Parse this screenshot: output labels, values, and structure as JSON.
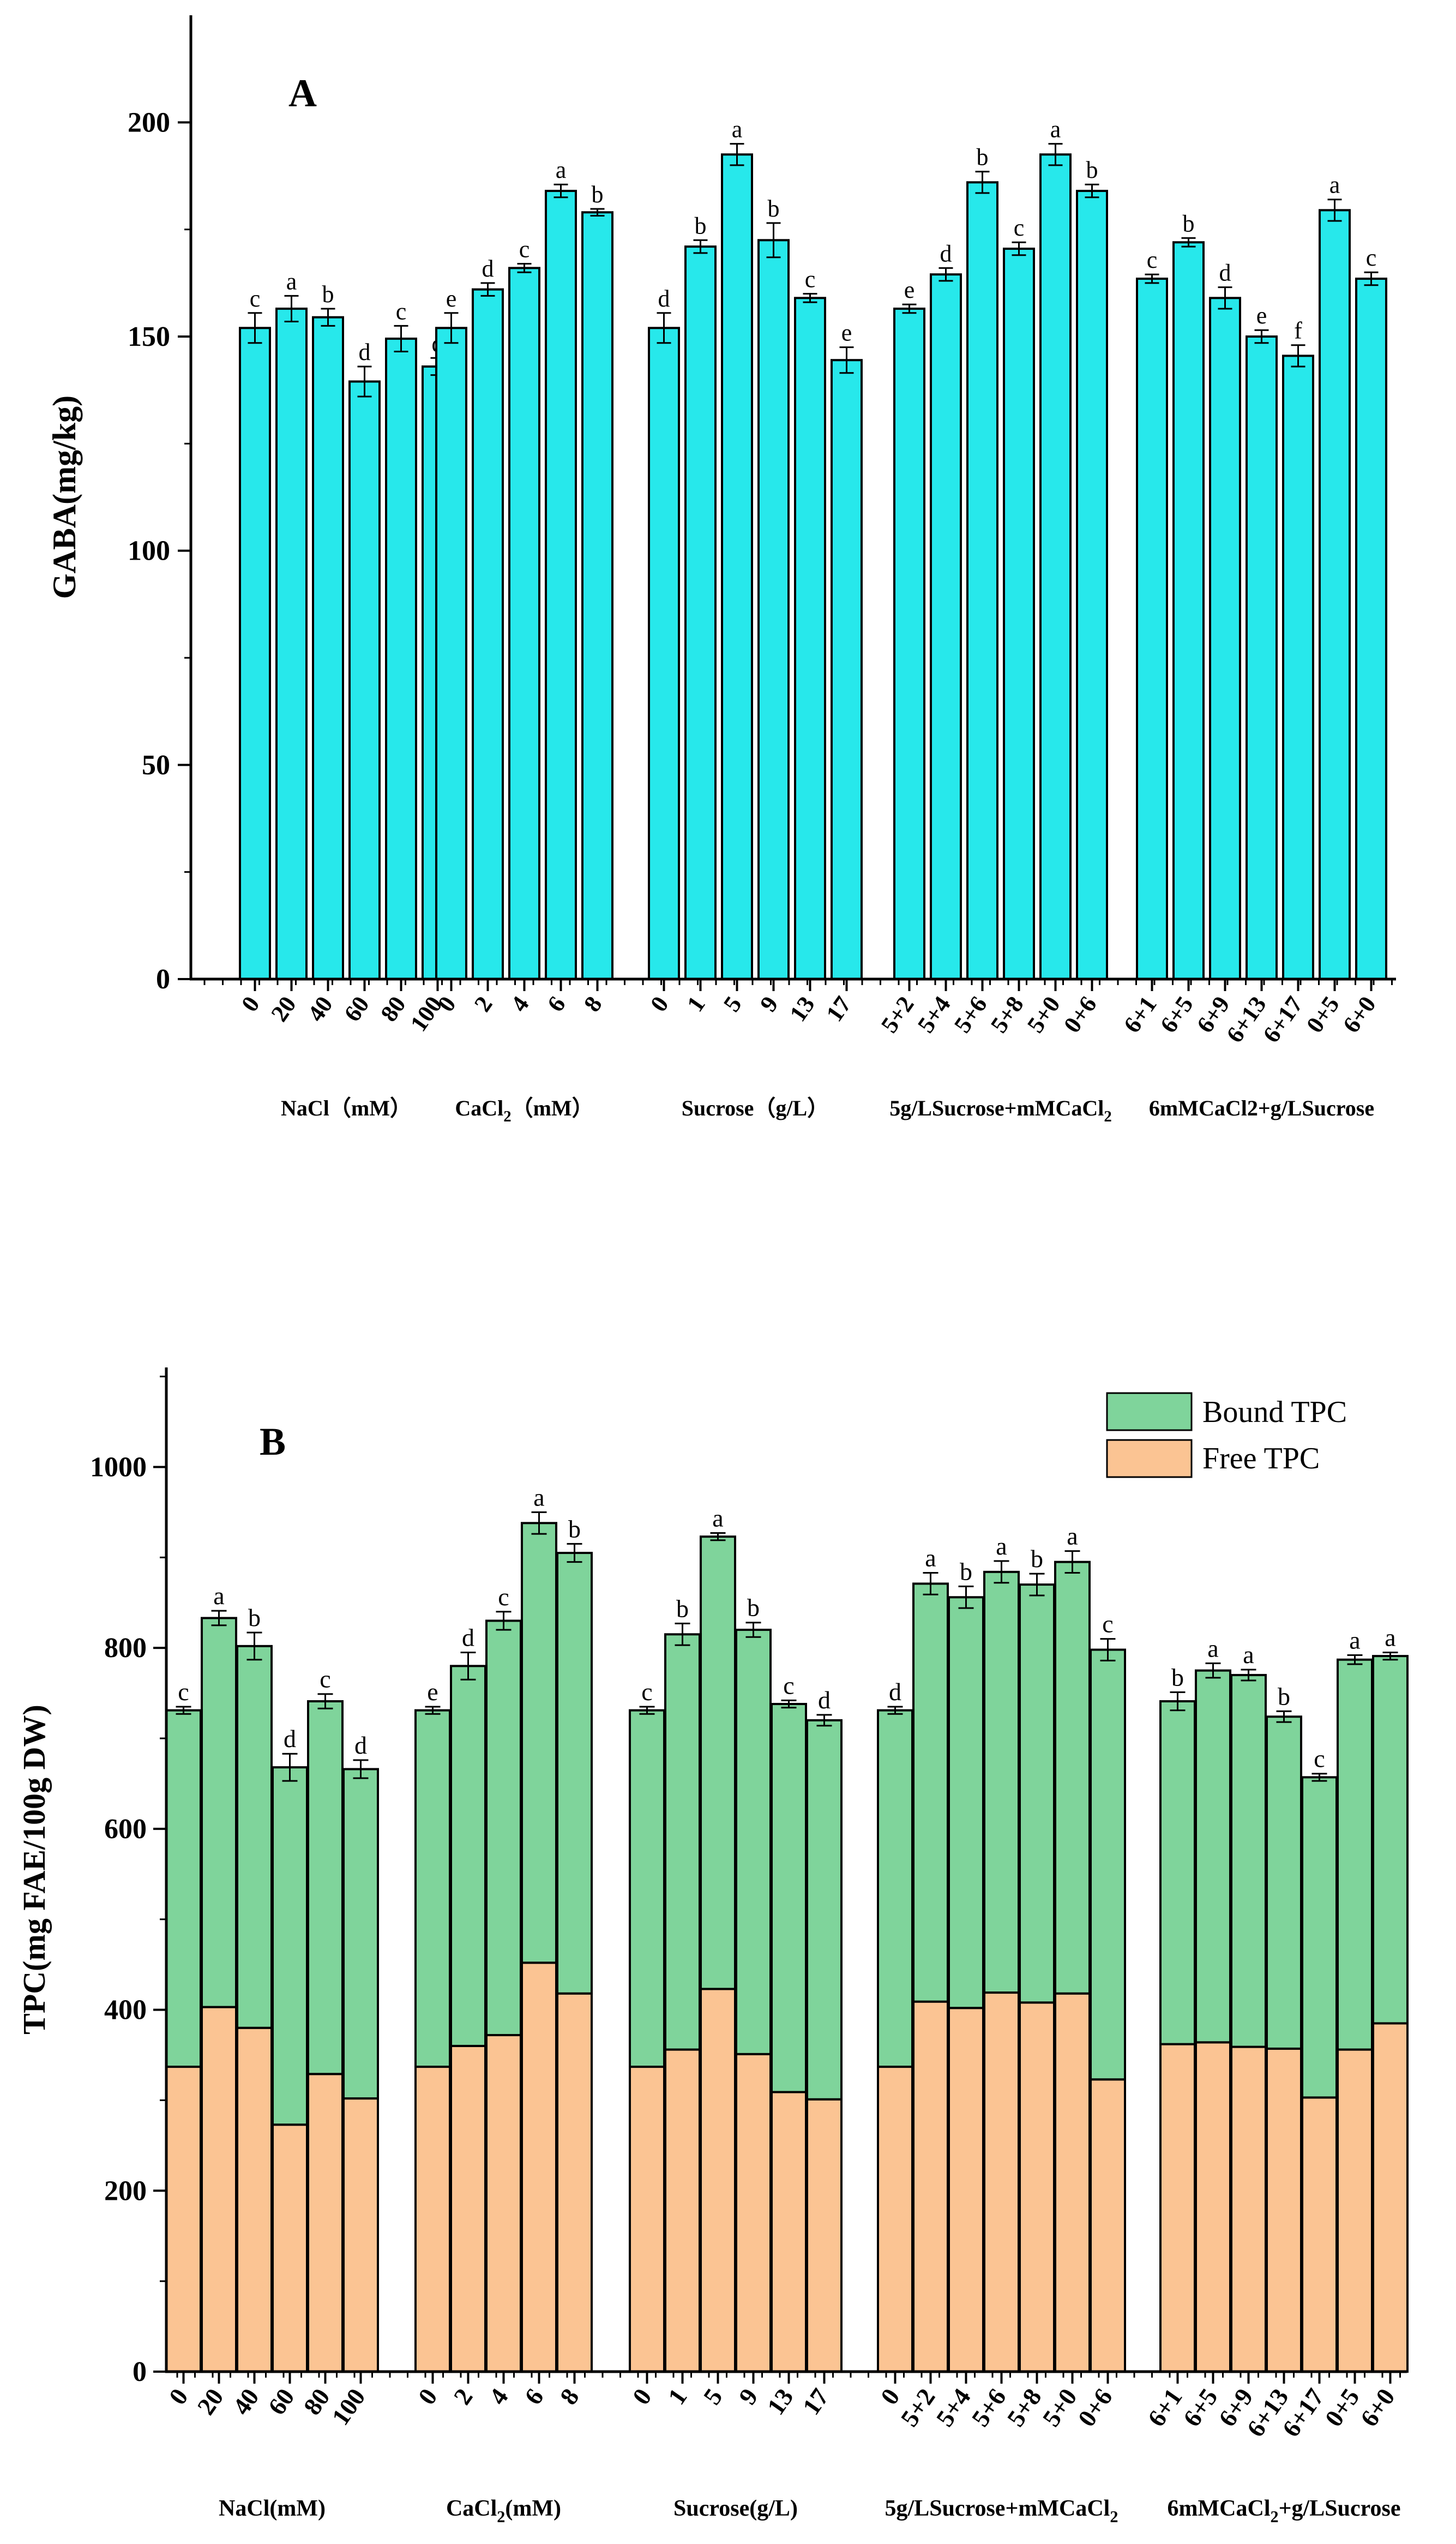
{
  "chart_data": [
    {
      "type": "bar",
      "panel_label": "A",
      "ylabel": "GABA(mg/kg)",
      "ylim": [
        0,
        225
      ],
      "yticks": [
        0,
        50,
        100,
        150,
        200
      ],
      "groups": [
        {
          "name": "NaCl（mM）",
          "categories": [
            "0",
            "20",
            "40",
            "60",
            "80",
            "100"
          ],
          "values": [
            152,
            156.5,
            154.5,
            139.5,
            149.5,
            143
          ],
          "errors": [
            3.5,
            3,
            2,
            3.5,
            3,
            2
          ],
          "letters": [
            "c",
            "a",
            "b",
            "d",
            "c",
            "d"
          ]
        },
        {
          "name": "CaCl2（mM）",
          "name_main": "CaCl",
          "name_sub": "2",
          "name_tail": "（mM）",
          "categories": [
            "0",
            "2",
            "4",
            "6",
            "8"
          ],
          "values": [
            152,
            161,
            166,
            184,
            179
          ],
          "errors": [
            3.5,
            1.5,
            1,
            1.5,
            0.8
          ],
          "letters": [
            "e",
            "d",
            "c",
            "a",
            "b"
          ]
        },
        {
          "name": "Sucrose（g/L）",
          "categories": [
            "0",
            "1",
            "5",
            "9",
            "13",
            "17"
          ],
          "values": [
            152,
            171,
            192.5,
            172.5,
            159,
            144.5
          ],
          "errors": [
            3.5,
            1.5,
            2.5,
            4,
            1,
            3
          ],
          "letters": [
            "d",
            "b",
            "a",
            "b",
            "c",
            "e"
          ]
        },
        {
          "name": "5g/LSucrose+mMCaCl2",
          "name_main": "5g/LSucrose+mMCaCl",
          "name_sub": "2",
          "name_tail": "",
          "categories": [
            "5+2",
            "5+4",
            "5+6",
            "5+8",
            "5+0",
            "0+6"
          ],
          "values": [
            156.5,
            164.5,
            186,
            170.5,
            192.5,
            184
          ],
          "errors": [
            1,
            1.5,
            2.5,
            1.5,
            2.5,
            1.5
          ],
          "letters": [
            "e",
            "d",
            "b",
            "c",
            "a",
            "b"
          ]
        },
        {
          "name": "6mMCaCl2+g/LSucrose",
          "categories": [
            "6+1",
            "6+5",
            "6+9",
            "6+13",
            "6+17",
            "0+5",
            "6+0"
          ],
          "values": [
            163.5,
            172,
            159,
            150,
            145.5,
            179.5,
            163.5
          ],
          "errors": [
            1,
            1,
            2.5,
            1.5,
            2.5,
            2.5,
            1.5
          ],
          "letters": [
            "c",
            "b",
            "d",
            "e",
            "f",
            "a",
            "c"
          ]
        }
      ]
    },
    {
      "type": "stacked-bar",
      "panel_label": "B",
      "ylabel": "TPC(mg FAE/100g DW)",
      "ylim": [
        0,
        1110
      ],
      "yticks": [
        0,
        200,
        400,
        600,
        800,
        1000
      ],
      "legend": [
        "Bound TPC",
        "Free TPC"
      ],
      "legend_position": "top-right",
      "colors": {
        "bound": "#7fd49b",
        "free": "#fbc493"
      },
      "groups": [
        {
          "name": "NaCl(mM)",
          "categories": [
            "0",
            "20",
            "40",
            "60",
            "80",
            "100"
          ],
          "free": [
            337,
            403,
            380,
            273,
            329,
            302
          ],
          "total": [
            731,
            833,
            802,
            668,
            741,
            666
          ],
          "errors": [
            4,
            8,
            15,
            15,
            8,
            10
          ],
          "letters": [
            "c",
            "a",
            "b",
            "d",
            "c",
            "d"
          ]
        },
        {
          "name": "CaCl2(mM)",
          "name_main": "CaCl",
          "name_sub": "2",
          "name_tail": "(mM)",
          "categories": [
            "0",
            "2",
            "4",
            "6",
            "8"
          ],
          "free": [
            337,
            360,
            372,
            452,
            418
          ],
          "total": [
            731,
            780,
            830,
            938,
            905
          ],
          "errors": [
            4,
            15,
            10,
            12,
            10
          ],
          "letters": [
            "e",
            "d",
            "c",
            "a",
            "b"
          ]
        },
        {
          "name": "Sucrose(g/L)",
          "categories": [
            "0",
            "1",
            "5",
            "9",
            "13",
            "17"
          ],
          "free": [
            337,
            356,
            423,
            351,
            309,
            301
          ],
          "total": [
            731,
            815,
            923,
            820,
            738,
            720
          ],
          "errors": [
            4,
            12,
            4,
            8,
            4,
            6
          ],
          "letters": [
            "c",
            "b",
            "a",
            "b",
            "c",
            "d"
          ]
        },
        {
          "name": "5g/LSucrose+mMCaCl2",
          "name_main": "5g/LSucrose+mMCaCl",
          "name_sub": "2",
          "name_tail": "",
          "categories": [
            "0",
            "5+2",
            "5+4",
            "5+6",
            "5+8",
            "5+0",
            "0+6"
          ],
          "free": [
            337,
            409,
            402,
            419,
            408,
            418,
            323
          ],
          "total": [
            731,
            871,
            856,
            884,
            870,
            895,
            798
          ],
          "errors": [
            4,
            12,
            12,
            12,
            12,
            12,
            12
          ],
          "letters": [
            "d",
            "a",
            "b",
            "a",
            "b",
            "a",
            "c"
          ]
        },
        {
          "name": "6mMCaCl2+g/LSucrose",
          "name_main": "6mMCaCl",
          "name_sub": "2",
          "name_tail": "+g/LSucrose",
          "categories": [
            "6+1",
            "6+5",
            "6+9",
            "6+13",
            "6+17",
            "0+5",
            "6+0"
          ],
          "free": [
            362,
            364,
            359,
            357,
            303,
            356,
            385
          ],
          "total": [
            741,
            775,
            770,
            724,
            657,
            787,
            791
          ],
          "errors": [
            10,
            8,
            6,
            6,
            4,
            5,
            4
          ],
          "letters": [
            "b",
            "a",
            "a",
            "b",
            "c",
            "a",
            "a"
          ]
        }
      ]
    }
  ]
}
